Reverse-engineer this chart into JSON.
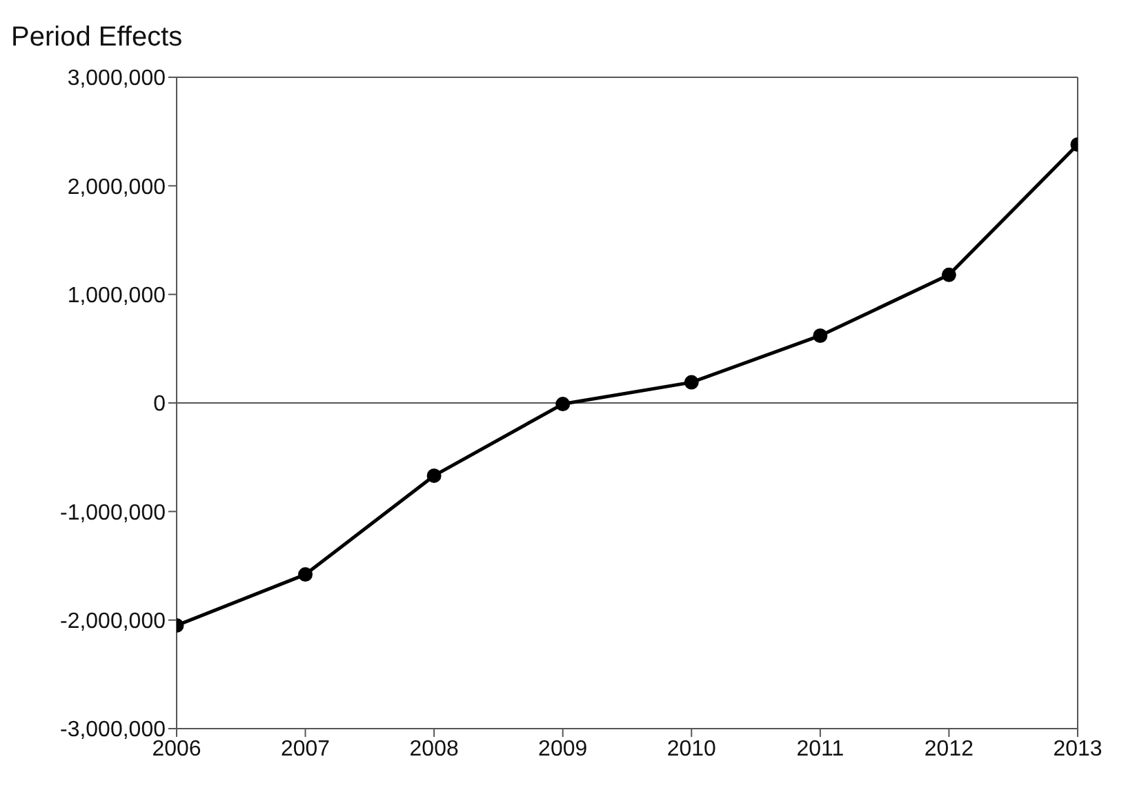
{
  "chart_data": {
    "type": "line",
    "title": "Period Effects",
    "x": [
      2006,
      2007,
      2008,
      2009,
      2010,
      2011,
      2012,
      2013
    ],
    "series": [
      {
        "color": "#000000",
        "values": [
          -2050000,
          -1580000,
          -670000,
          -10000,
          190000,
          620000,
          1180000,
          2380000
        ]
      }
    ],
    "xlim": [
      2006,
      2013
    ],
    "xticks": [
      2006,
      2007,
      2008,
      2009,
      2010,
      2011,
      2012,
      2013
    ],
    "ylim": [
      -3000000,
      3000000
    ],
    "yticks": [
      {
        "value": -3000000,
        "label": "-3,000,000"
      },
      {
        "value": -2000000,
        "label": "-2,000,000"
      },
      {
        "value": -1000000,
        "label": "-1,000,000"
      },
      0,
      {
        "value": 1000000,
        "label": "1,000,000"
      },
      {
        "value": 2000000,
        "label": "2,000,000"
      },
      {
        "value": 3000000,
        "label": "3,000,000"
      }
    ],
    "ref_lines": [
      {
        "axis": "y",
        "value": 0,
        "color": "#555555"
      }
    ],
    "marker": "circle",
    "line_style": "solid"
  }
}
